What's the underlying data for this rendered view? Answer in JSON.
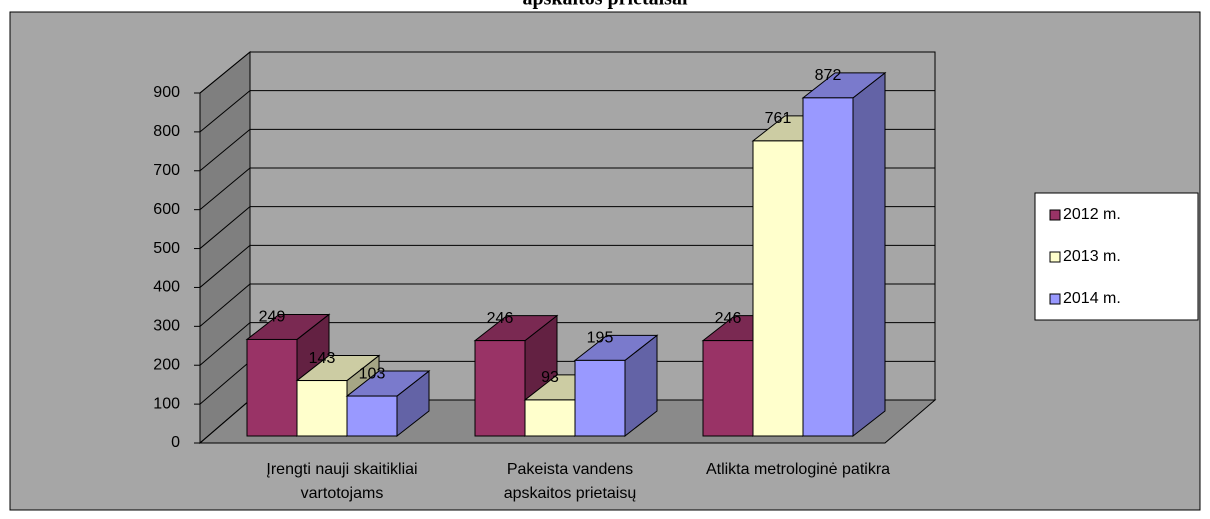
{
  "chart_data": {
    "type": "bar3d",
    "title": "apskaitos prietaisai",
    "categories": [
      "Įrengti nauji skaitikliai vartotojams",
      "Pakeista vandens apskaitos prietaisų",
      "Atlikta metrologinė patikra"
    ],
    "series": [
      {
        "name": "2012 m.",
        "color": "#993366",
        "values": [
          249,
          246,
          246
        ]
      },
      {
        "name": "2013 m.",
        "color": "#ffffcc",
        "values": [
          143,
          93,
          761
        ]
      },
      {
        "name": "2014 m.",
        "color": "#9999ff",
        "values": [
          103,
          195,
          872
        ]
      }
    ],
    "ylim": [
      0,
      900
    ],
    "yticks": [
      0,
      100,
      200,
      300,
      400,
      500,
      600,
      700,
      800,
      900
    ],
    "grid": true,
    "legend": "right"
  }
}
